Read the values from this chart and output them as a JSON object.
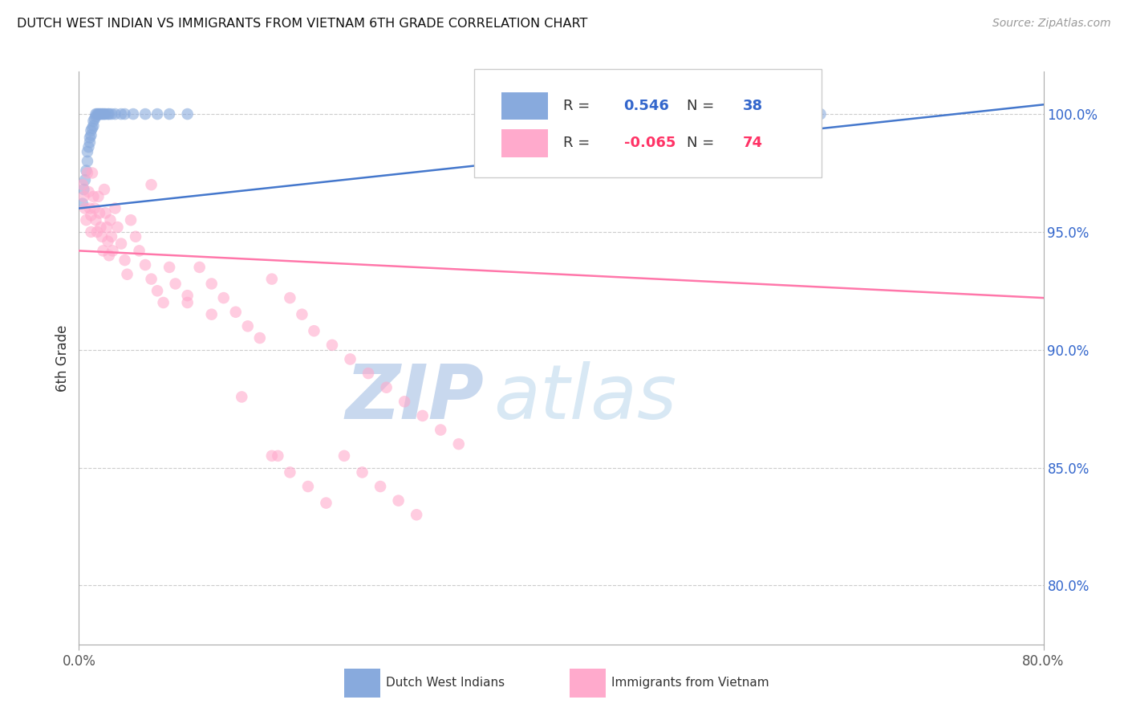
{
  "title": "DUTCH WEST INDIAN VS IMMIGRANTS FROM VIETNAM 6TH GRADE CORRELATION CHART",
  "source": "Source: ZipAtlas.com",
  "ylabel": "6th Grade",
  "legend_label_blue": "Dutch West Indians",
  "legend_label_pink": "Immigrants from Vietnam",
  "xmin": 0.0,
  "xmax": 0.8,
  "ymin": 0.775,
  "ymax": 1.018,
  "blue_R": "0.546",
  "blue_N": "38",
  "pink_R": "-0.065",
  "pink_N": "74",
  "blue_color": "#88AADD",
  "pink_color": "#FFAACC",
  "blue_line_color": "#4477CC",
  "pink_line_color": "#FF77AA",
  "blue_line_y0": 0.96,
  "blue_line_y1": 1.004,
  "pink_line_y0": 0.942,
  "pink_line_y1": 0.922,
  "right_ytick_vals": [
    1.0,
    0.95,
    0.9,
    0.85,
    0.8
  ],
  "right_ytick_labels": [
    "100.0%",
    "95.0%",
    "90.0%",
    "85.0%",
    "80.0%"
  ],
  "blue_color_legend": "#3366CC",
  "pink_color_legend": "#FF3366",
  "blue_points_x": [
    0.003,
    0.004,
    0.005,
    0.006,
    0.007,
    0.007,
    0.008,
    0.009,
    0.009,
    0.01,
    0.01,
    0.011,
    0.012,
    0.012,
    0.013,
    0.014,
    0.014,
    0.015,
    0.016,
    0.017,
    0.018,
    0.019,
    0.02,
    0.021,
    0.022,
    0.024,
    0.025,
    0.027,
    0.03,
    0.035,
    0.038,
    0.045,
    0.055,
    0.065,
    0.075,
    0.09,
    0.545,
    0.615
  ],
  "blue_points_y": [
    0.962,
    0.968,
    0.972,
    0.976,
    0.98,
    0.984,
    0.986,
    0.988,
    0.99,
    0.991,
    0.993,
    0.994,
    0.995,
    0.997,
    0.998,
    0.999,
    1.0,
    1.0,
    1.0,
    1.0,
    1.0,
    1.0,
    1.0,
    1.0,
    1.0,
    1.0,
    1.0,
    1.0,
    1.0,
    1.0,
    1.0,
    1.0,
    1.0,
    1.0,
    1.0,
    1.0,
    1.0,
    1.0
  ],
  "pink_points_x": [
    0.003,
    0.004,
    0.005,
    0.006,
    0.007,
    0.008,
    0.009,
    0.01,
    0.01,
    0.011,
    0.012,
    0.013,
    0.014,
    0.015,
    0.016,
    0.017,
    0.018,
    0.019,
    0.02,
    0.021,
    0.022,
    0.023,
    0.024,
    0.025,
    0.026,
    0.027,
    0.028,
    0.03,
    0.032,
    0.035,
    0.038,
    0.04,
    0.043,
    0.047,
    0.05,
    0.055,
    0.06,
    0.065,
    0.07,
    0.075,
    0.08,
    0.09,
    0.1,
    0.11,
    0.12,
    0.13,
    0.14,
    0.15,
    0.16,
    0.175,
    0.185,
    0.195,
    0.21,
    0.225,
    0.24,
    0.255,
    0.27,
    0.285,
    0.3,
    0.315,
    0.165,
    0.175,
    0.19,
    0.205,
    0.22,
    0.235,
    0.25,
    0.265,
    0.28,
    0.06,
    0.09,
    0.11,
    0.135,
    0.16
  ],
  "pink_points_y": [
    0.97,
    0.965,
    0.96,
    0.955,
    0.975,
    0.967,
    0.96,
    0.957,
    0.95,
    0.975,
    0.965,
    0.96,
    0.955,
    0.95,
    0.965,
    0.958,
    0.952,
    0.948,
    0.942,
    0.968,
    0.958,
    0.952,
    0.946,
    0.94,
    0.955,
    0.948,
    0.942,
    0.96,
    0.952,
    0.945,
    0.938,
    0.932,
    0.955,
    0.948,
    0.942,
    0.936,
    0.93,
    0.925,
    0.92,
    0.935,
    0.928,
    0.923,
    0.935,
    0.928,
    0.922,
    0.916,
    0.91,
    0.905,
    0.93,
    0.922,
    0.915,
    0.908,
    0.902,
    0.896,
    0.89,
    0.884,
    0.878,
    0.872,
    0.866,
    0.86,
    0.855,
    0.848,
    0.842,
    0.835,
    0.855,
    0.848,
    0.842,
    0.836,
    0.83,
    0.97,
    0.92,
    0.915,
    0.88,
    0.855
  ]
}
